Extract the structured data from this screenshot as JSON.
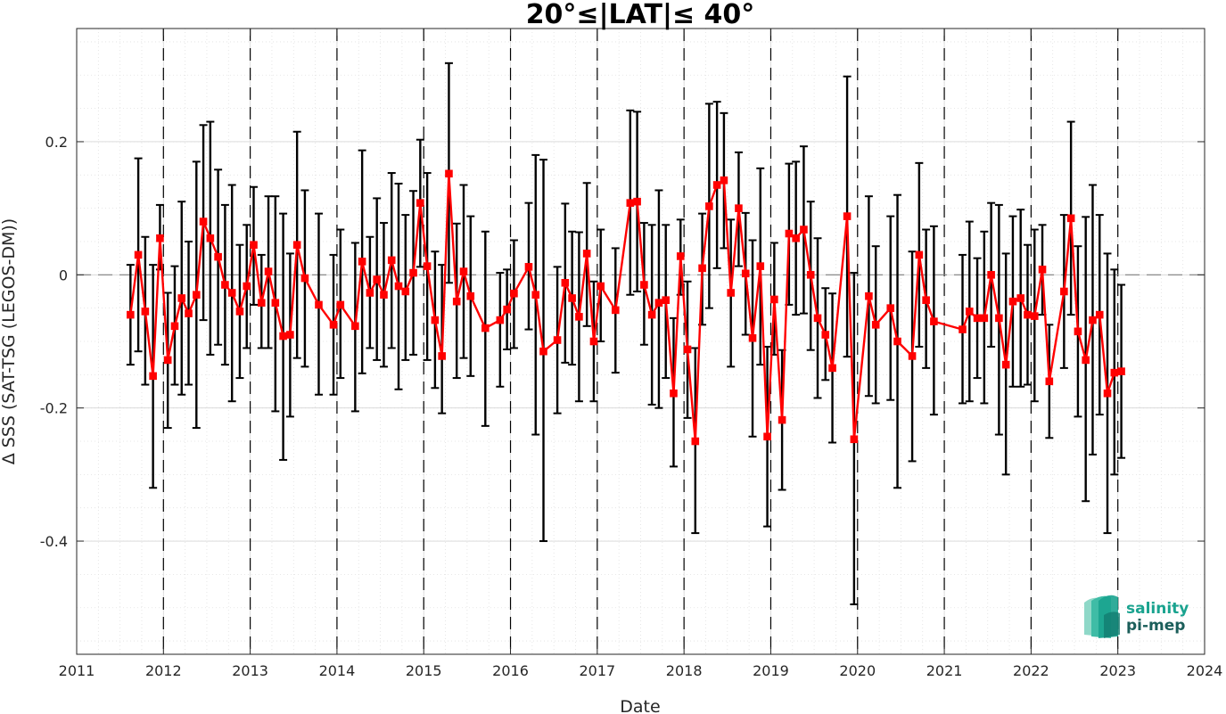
{
  "chart_data": {
    "type": "line",
    "title": "20°≤|LAT|≤ 40°",
    "xlabel": "Date",
    "ylabel": "Δ SSS (SAT-TSG (LEGOS-DM))",
    "xlim": [
      2011,
      2024
    ],
    "ylim": [
      -0.57,
      0.37
    ],
    "x_ticks": [
      "2011",
      "2012",
      "2013",
      "2014",
      "2015",
      "2016",
      "2017",
      "2018",
      "2019",
      "2020",
      "2021",
      "2022",
      "2023",
      "2024"
    ],
    "y_ticks": [
      "0.2",
      "0",
      "-0.2",
      "-0.4"
    ],
    "grid": true,
    "year_dividers": [
      2012,
      2013,
      2014,
      2015,
      2016,
      2017,
      2018,
      2019,
      2020,
      2021,
      2022,
      2023
    ],
    "zero_reference": 0,
    "colors": {
      "series": "#ff0000",
      "errorbar": "#000000",
      "reference": "#808080",
      "logo_primary": "#1aa38f",
      "logo_dark": "#1b5e5a"
    },
    "series": [
      {
        "points": [
          [
            2011.62,
            -0.06,
            -0.135,
            0.015
          ],
          [
            2011.71,
            0.03,
            -0.115,
            0.175
          ],
          [
            2011.79,
            -0.055,
            -0.165,
            0.057
          ],
          [
            2011.88,
            -0.152,
            -0.32,
            0.015
          ],
          [
            2011.96,
            0.055,
            0.008,
            0.105
          ],
          [
            2012.05,
            -0.128,
            -0.23,
            -0.027
          ],
          [
            2012.13,
            -0.077,
            -0.165,
            0.013
          ],
          [
            2012.21,
            -0.035,
            -0.18,
            0.11
          ],
          [
            2012.29,
            -0.058,
            -0.165,
            0.05
          ],
          [
            2012.38,
            -0.03,
            -0.23,
            0.17
          ],
          [
            2012.46,
            0.08,
            -0.068,
            0.225
          ],
          [
            2012.54,
            0.055,
            -0.12,
            0.23
          ],
          [
            2012.63,
            0.027,
            -0.105,
            0.158
          ],
          [
            2012.71,
            -0.015,
            -0.135,
            0.105
          ],
          [
            2012.79,
            -0.027,
            -0.19,
            0.135
          ],
          [
            2012.88,
            -0.055,
            -0.155,
            0.045
          ],
          [
            2012.96,
            -0.017,
            -0.11,
            0.075
          ],
          [
            2013.04,
            0.045,
            -0.045,
            0.132
          ],
          [
            2013.13,
            -0.042,
            -0.11,
            0.03
          ],
          [
            2013.21,
            0.005,
            -0.11,
            0.118
          ],
          [
            2013.29,
            -0.042,
            -0.205,
            0.118
          ],
          [
            2013.38,
            -0.092,
            -0.278,
            0.092
          ],
          [
            2013.46,
            -0.09,
            -0.213,
            0.032
          ],
          [
            2013.54,
            0.045,
            -0.125,
            0.215
          ],
          [
            2013.63,
            -0.005,
            -0.138,
            0.127
          ],
          [
            2013.79,
            -0.045,
            -0.18,
            0.092
          ],
          [
            2013.96,
            -0.075,
            -0.18,
            0.03
          ],
          [
            2014.04,
            -0.045,
            -0.155,
            0.068
          ],
          [
            2014.21,
            -0.077,
            -0.205,
            0.048
          ],
          [
            2014.29,
            0.02,
            -0.148,
            0.187
          ],
          [
            2014.38,
            -0.027,
            -0.11,
            0.057
          ],
          [
            2014.46,
            -0.007,
            -0.128,
            0.115
          ],
          [
            2014.54,
            -0.03,
            -0.138,
            0.078
          ],
          [
            2014.63,
            0.022,
            -0.11,
            0.153
          ],
          [
            2014.71,
            -0.017,
            -0.172,
            0.137
          ],
          [
            2014.79,
            -0.025,
            -0.128,
            0.09
          ],
          [
            2014.88,
            0.003,
            -0.12,
            0.126
          ],
          [
            2014.96,
            0.108,
            0.012,
            0.203
          ],
          [
            2015.04,
            0.013,
            -0.128,
            0.153
          ],
          [
            2015.13,
            -0.068,
            -0.17,
            0.035
          ],
          [
            2015.21,
            -0.122,
            -0.208,
            0.015
          ],
          [
            2015.29,
            0.152,
            -0.012,
            0.318
          ],
          [
            2015.38,
            -0.04,
            -0.155,
            0.077
          ],
          [
            2015.46,
            0.005,
            -0.125,
            0.135
          ],
          [
            2015.54,
            -0.032,
            -0.152,
            0.088
          ],
          [
            2015.71,
            -0.08,
            -0.227,
            0.065
          ],
          [
            2015.88,
            -0.068,
            -0.168,
            0.003
          ],
          [
            2015.96,
            -0.052,
            -0.112,
            0.008
          ],
          [
            2016.04,
            -0.028,
            -0.11,
            0.052
          ],
          [
            2016.21,
            0.012,
            -0.082,
            0.108
          ],
          [
            2016.29,
            -0.03,
            -0.24,
            0.18
          ],
          [
            2016.38,
            -0.115,
            -0.4,
            0.173
          ],
          [
            2016.54,
            -0.098,
            -0.208,
            0.012
          ],
          [
            2016.63,
            -0.012,
            -0.132,
            0.107
          ],
          [
            2016.71,
            -0.035,
            -0.135,
            0.065
          ],
          [
            2016.79,
            -0.063,
            -0.19,
            0.064
          ],
          [
            2016.88,
            0.032,
            -0.077,
            0.138
          ],
          [
            2016.96,
            -0.1,
            -0.19,
            -0.01
          ],
          [
            2017.04,
            -0.017,
            -0.1,
            0.068
          ],
          [
            2017.21,
            -0.053,
            -0.147,
            0.04
          ],
          [
            2017.38,
            0.108,
            -0.03,
            0.247
          ],
          [
            2017.46,
            0.11,
            -0.025,
            0.245
          ],
          [
            2017.54,
            -0.015,
            -0.105,
            0.078
          ],
          [
            2017.63,
            -0.06,
            -0.195,
            0.075
          ],
          [
            2017.71,
            -0.042,
            -0.2,
            0.127
          ],
          [
            2017.79,
            -0.038,
            -0.155,
            0.075
          ],
          [
            2017.88,
            -0.178,
            -0.288,
            -0.065
          ],
          [
            2017.96,
            0.028,
            -0.03,
            0.083
          ],
          [
            2018.04,
            -0.112,
            -0.215,
            -0.01
          ],
          [
            2018.13,
            -0.25,
            -0.388,
            -0.11
          ],
          [
            2018.21,
            0.01,
            -0.075,
            0.092
          ],
          [
            2018.29,
            0.103,
            -0.05,
            0.257
          ],
          [
            2018.38,
            0.135,
            0.01,
            0.26
          ],
          [
            2018.46,
            0.142,
            0.04,
            0.243
          ],
          [
            2018.54,
            -0.027,
            -0.138,
            0.083
          ],
          [
            2018.63,
            0.1,
            0.013,
            0.184
          ],
          [
            2018.71,
            0.002,
            -0.09,
            0.093
          ],
          [
            2018.79,
            -0.095,
            -0.243,
            0.052
          ],
          [
            2018.88,
            0.013,
            -0.135,
            0.16
          ],
          [
            2018.96,
            -0.243,
            -0.378,
            -0.108
          ],
          [
            2019.04,
            -0.037,
            -0.12,
            0.048
          ],
          [
            2019.13,
            -0.218,
            -0.323,
            -0.113
          ],
          [
            2019.21,
            0.062,
            -0.045,
            0.167
          ],
          [
            2019.29,
            0.055,
            -0.06,
            0.17
          ],
          [
            2019.38,
            0.068,
            -0.058,
            0.193
          ],
          [
            2019.46,
            0.0,
            -0.113,
            0.11
          ],
          [
            2019.54,
            -0.065,
            -0.185,
            0.055
          ],
          [
            2019.63,
            -0.09,
            -0.158,
            -0.02
          ],
          [
            2019.71,
            -0.14,
            -0.252,
            -0.028
          ],
          [
            2019.88,
            0.088,
            -0.123,
            0.298
          ],
          [
            2019.96,
            -0.247,
            -0.495,
            0.003
          ],
          [
            2020.13,
            -0.032,
            -0.182,
            0.118
          ],
          [
            2020.21,
            -0.075,
            -0.193,
            0.043
          ],
          [
            2020.38,
            -0.05,
            -0.188,
            0.088
          ],
          [
            2020.46,
            -0.1,
            -0.32,
            0.12
          ],
          [
            2020.63,
            -0.122,
            -0.28,
            0.035
          ],
          [
            2020.71,
            0.03,
            -0.108,
            0.168
          ],
          [
            2020.79,
            -0.038,
            -0.14,
            0.068
          ],
          [
            2020.88,
            -0.07,
            -0.21,
            0.073
          ],
          [
            2021.21,
            -0.082,
            -0.193,
            0.03
          ],
          [
            2021.29,
            -0.055,
            -0.19,
            0.08
          ],
          [
            2021.38,
            -0.065,
            -0.155,
            0.025
          ],
          [
            2021.46,
            -0.065,
            -0.193,
            0.065
          ],
          [
            2021.54,
            0.0,
            -0.108,
            0.108
          ],
          [
            2021.63,
            -0.065,
            -0.24,
            0.105
          ],
          [
            2021.71,
            -0.135,
            -0.3,
            0.032
          ],
          [
            2021.79,
            -0.04,
            -0.168,
            0.088
          ],
          [
            2021.88,
            -0.035,
            -0.168,
            0.098
          ],
          [
            2021.96,
            -0.06,
            -0.165,
            0.045
          ],
          [
            2022.04,
            -0.062,
            -0.19,
            0.068
          ],
          [
            2022.13,
            0.008,
            -0.06,
            0.075
          ],
          [
            2022.21,
            -0.16,
            -0.245,
            -0.075
          ],
          [
            2022.38,
            -0.025,
            -0.14,
            0.09
          ],
          [
            2022.46,
            0.085,
            -0.06,
            0.23
          ],
          [
            2022.54,
            -0.085,
            -0.213,
            0.043
          ],
          [
            2022.63,
            -0.128,
            -0.34,
            0.087
          ],
          [
            2022.71,
            -0.068,
            -0.27,
            0.135
          ],
          [
            2022.79,
            -0.06,
            -0.21,
            0.09
          ],
          [
            2022.88,
            -0.178,
            -0.388,
            0.032
          ],
          [
            2022.96,
            -0.147,
            -0.3,
            0.008
          ],
          [
            2023.04,
            -0.145,
            -0.275,
            -0.015
          ]
        ]
      }
    ]
  },
  "logo": {
    "line1": "salinity",
    "line2": "pi-mep"
  }
}
